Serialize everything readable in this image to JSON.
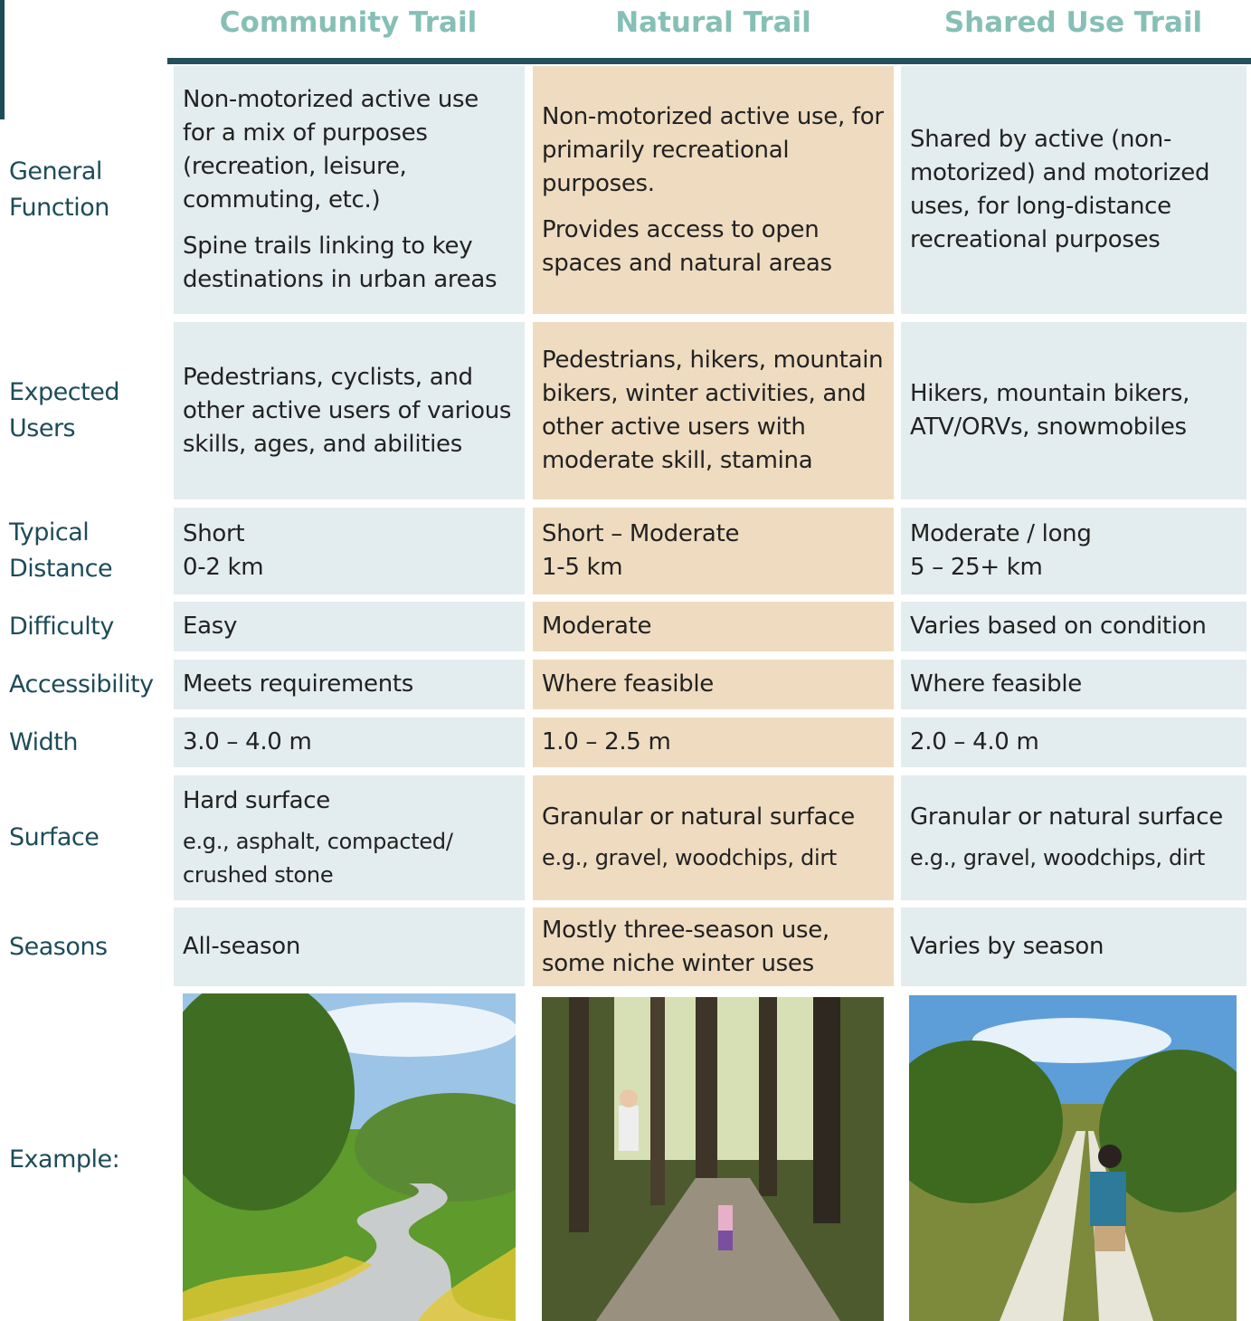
{
  "header": {
    "columns": [
      "Community Trail",
      "Natural Trail",
      "Shared Use Trail"
    ]
  },
  "table": {
    "rows": [
      {
        "label": "General Function",
        "cells": [
          [
            "Non-motorized active use for a mix of purposes (recreation, leisure, commuting, etc.)",
            "Spine trails linking to key destinations in urban areas"
          ],
          [
            "Non-motorized active use, for primarily recreational purposes.",
            "Provides access to open spaces and natural areas"
          ],
          [
            "Shared by active (non-motorized) and motorized uses, for long-distance recreational purposes"
          ]
        ]
      },
      {
        "label": "Expected Users",
        "cells": [
          [
            "Pedestrians, cyclists, and other active users of various skills, ages, and abilities"
          ],
          [
            "Pedestrians, hikers, mountain bikers, winter activities, and other active users with moderate skill, stamina"
          ],
          [
            "Hikers, mountain bikers, ATV/ORVs, snowmobiles"
          ]
        ]
      },
      {
        "label": "Typical Distance",
        "cells": [
          [
            "Short",
            "0-2 km"
          ],
          [
            "Short – Moderate",
            "1-5 km"
          ],
          [
            "Moderate / long",
            "5 – 25+ km"
          ]
        ]
      },
      {
        "label": "Difficulty",
        "cells": [
          [
            "Easy"
          ],
          [
            "Moderate"
          ],
          [
            "Varies based on condition"
          ]
        ]
      },
      {
        "label": "Accessibility",
        "cells": [
          [
            "Meets requirements"
          ],
          [
            "Where feasible"
          ],
          [
            "Where feasible"
          ]
        ]
      },
      {
        "label": "Width",
        "cells": [
          [
            "3.0 – 4.0 m"
          ],
          [
            "1.0 – 2.5 m"
          ],
          [
            "2.0 – 4.0 m"
          ]
        ]
      },
      {
        "label": "Surface",
        "cells": [
          [
            "Hard surface",
            "e.g., asphalt, compacted/ crushed stone"
          ],
          [
            "Granular or natural surface",
            "e.g., gravel, woodchips, dirt"
          ],
          [
            "Granular or natural surface",
            "e.g., gravel, woodchips, dirt"
          ]
        ]
      },
      {
        "label": "Seasons",
        "cells": [
          [
            "All-season"
          ],
          [
            "Mostly three-season use, some niche winter uses"
          ],
          [
            "Varies by season"
          ]
        ]
      }
    ],
    "example_label": "Example:"
  }
}
